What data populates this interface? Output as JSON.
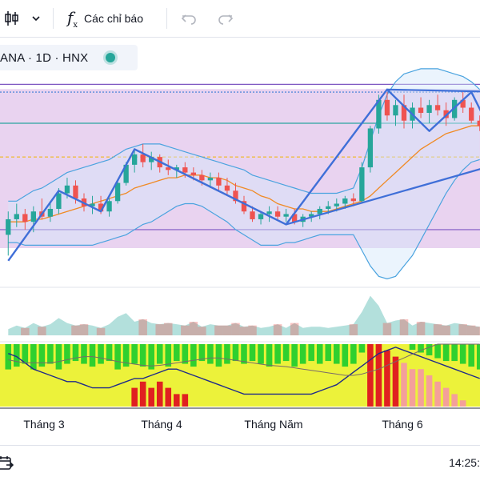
{
  "toolbar": {
    "candles_icon": "candlestick-icon",
    "dropdown_icon": "chevron-down-icon",
    "indicators_icon": "fx-icon",
    "indicators_label": "Các chỉ báo",
    "undo_icon": "undo-icon",
    "redo_icon": "redo-icon"
  },
  "legend": {
    "symbol_text": "ANA · 1D · HNX",
    "status_color": "#26a69a"
  },
  "bottom_bar": {
    "date_range_icon": "calendar-range-icon",
    "clock": "14:25:"
  },
  "colors": {
    "up": "#26a69a",
    "down": "#ef5350",
    "zigzag": "#3f6fd8",
    "bollinger": "#4aa3df",
    "ma": "#f08a24",
    "price_pane_bg": "#e9d3f0",
    "hist_green": "#2fd02f",
    "hist_yellow": "#ecf23a",
    "hist_red": "#e02020",
    "hist_pink": "#f4a09a"
  },
  "chart_data": [
    {
      "type": "candlestick",
      "x_tick_labels": [
        "Tháng 3",
        "Tháng 4",
        "Tháng Năm",
        "Tháng 6"
      ],
      "candles": [
        [
          20.4,
          21.3,
          19.6,
          21.0
        ],
        [
          21.0,
          21.6,
          20.7,
          21.2
        ],
        [
          21.2,
          21.4,
          20.6,
          20.9
        ],
        [
          20.9,
          21.5,
          20.5,
          21.3
        ],
        [
          21.3,
          21.8,
          21.0,
          21.1
        ],
        [
          21.1,
          21.7,
          20.9,
          21.4
        ],
        [
          21.4,
          22.2,
          21.2,
          22.0
        ],
        [
          22.0,
          22.6,
          21.8,
          22.3
        ],
        [
          22.3,
          22.5,
          21.6,
          21.8
        ],
        [
          21.8,
          22.0,
          21.3,
          21.5
        ],
        [
          21.5,
          21.9,
          21.2,
          21.6
        ],
        [
          21.6,
          21.9,
          21.2,
          21.3
        ],
        [
          21.3,
          21.8,
          21.1,
          21.7
        ],
        [
          21.7,
          22.5,
          21.6,
          22.4
        ],
        [
          22.4,
          23.2,
          22.3,
          23.1
        ],
        [
          23.1,
          23.7,
          22.8,
          23.5
        ],
        [
          23.5,
          23.9,
          23.0,
          23.2
        ],
        [
          23.2,
          23.6,
          22.9,
          23.4
        ],
        [
          23.4,
          23.5,
          22.8,
          23.0
        ],
        [
          23.0,
          23.3,
          22.7,
          22.9
        ],
        [
          22.9,
          23.1,
          22.6,
          23.0
        ],
        [
          23.0,
          23.2,
          22.6,
          22.8
        ],
        [
          22.8,
          23.0,
          22.5,
          22.7
        ],
        [
          22.7,
          22.9,
          22.3,
          22.5
        ],
        [
          22.5,
          22.8,
          22.2,
          22.6
        ],
        [
          22.6,
          22.8,
          22.1,
          22.3
        ],
        [
          22.3,
          22.6,
          21.9,
          22.1
        ],
        [
          22.1,
          22.4,
          21.6,
          21.7
        ],
        [
          21.7,
          21.9,
          21.2,
          21.3
        ],
        [
          21.3,
          21.5,
          20.9,
          21.0
        ],
        [
          21.0,
          21.3,
          20.8,
          21.2
        ],
        [
          21.2,
          21.5,
          20.9,
          21.3
        ],
        [
          21.3,
          21.5,
          21.0,
          21.1
        ],
        [
          21.1,
          21.4,
          20.9,
          21.2
        ],
        [
          21.2,
          21.4,
          20.8,
          20.9
        ],
        [
          20.9,
          21.2,
          20.7,
          21.1
        ],
        [
          21.1,
          21.3,
          20.9,
          21.2
        ],
        [
          21.2,
          21.5,
          21.0,
          21.4
        ],
        [
          21.4,
          21.7,
          21.2,
          21.5
        ],
        [
          21.5,
          21.8,
          21.3,
          21.6
        ],
        [
          21.6,
          21.9,
          21.4,
          21.8
        ],
        [
          21.8,
          22.0,
          21.5,
          21.7
        ],
        [
          21.7,
          23.2,
          21.6,
          23.0
        ],
        [
          23.0,
          24.6,
          22.8,
          24.5
        ],
        [
          24.5,
          25.8,
          24.3,
          25.6
        ],
        [
          25.6,
          25.9,
          24.8,
          25.0
        ],
        [
          25.0,
          25.6,
          24.6,
          25.4
        ],
        [
          25.4,
          25.8,
          24.5,
          24.8
        ],
        [
          24.8,
          25.5,
          24.5,
          25.3
        ],
        [
          25.3,
          25.7,
          24.9,
          25.1
        ],
        [
          25.1,
          25.6,
          24.7,
          25.4
        ],
        [
          25.4,
          25.8,
          25.0,
          25.2
        ],
        [
          25.2,
          25.5,
          24.6,
          24.9
        ],
        [
          24.9,
          25.7,
          24.8,
          25.6
        ],
        [
          25.6,
          25.9,
          25.1,
          25.3
        ],
        [
          25.3,
          25.5,
          24.7,
          24.8
        ],
        [
          24.8,
          25.0,
          24.4,
          24.6
        ]
      ],
      "moving_average": [
        20.9,
        20.9,
        20.9,
        21.0,
        21.0,
        21.1,
        21.2,
        21.3,
        21.4,
        21.5,
        21.6,
        21.7,
        21.8,
        21.9,
        22.0,
        22.2,
        22.3,
        22.4,
        22.5,
        22.6,
        22.6,
        22.7,
        22.7,
        22.7,
        22.6,
        22.6,
        22.5,
        22.3,
        22.2,
        22.1,
        21.9,
        21.8,
        21.6,
        21.5,
        21.4,
        21.4,
        21.3,
        21.3,
        21.3,
        21.4,
        21.5,
        21.6,
        21.7,
        21.9,
        22.2,
        22.5,
        22.8,
        23.1,
        23.4,
        23.7,
        23.9,
        24.1,
        24.3,
        24.4,
        24.5,
        24.6,
        24.6
      ],
      "bollinger_upper": [
        21.7,
        21.7,
        21.9,
        22.1,
        22.2,
        22.4,
        22.6,
        22.8,
        22.9,
        23.0,
        23.1,
        23.2,
        23.3,
        23.5,
        23.7,
        23.8,
        23.9,
        23.9,
        23.9,
        23.8,
        23.7,
        23.6,
        23.5,
        23.4,
        23.3,
        23.2,
        23.1,
        23.0,
        22.9,
        22.7,
        22.6,
        22.5,
        22.4,
        22.3,
        22.2,
        22.1,
        22.0,
        22.0,
        22.0,
        22.0,
        22.1,
        22.2,
        23.0,
        24.0,
        25.0,
        25.8,
        26.3,
        26.6,
        26.7,
        26.8,
        26.8,
        26.8,
        26.7,
        26.6,
        26.5,
        26.3,
        26.0
      ],
      "bollinger_lower": [
        20.1,
        20.1,
        20.0,
        20.0,
        20.0,
        20.0,
        20.0,
        20.0,
        20.0,
        20.0,
        20.0,
        20.1,
        20.2,
        20.3,
        20.4,
        20.6,
        20.8,
        20.9,
        21.1,
        21.3,
        21.5,
        21.6,
        21.6,
        21.5,
        21.3,
        21.1,
        20.9,
        20.6,
        20.4,
        20.2,
        20.0,
        20.0,
        20.0,
        20.1,
        20.1,
        20.2,
        20.3,
        20.4,
        20.4,
        20.4,
        20.4,
        20.4,
        19.8,
        19.2,
        18.8,
        18.7,
        18.8,
        19.2,
        19.6,
        20.2,
        20.8,
        21.4,
        22.0,
        22.5,
        22.9,
        23.2,
        23.3
      ],
      "zigzag": [
        [
          0,
          19.4
        ],
        [
          6,
          22.1
        ],
        [
          11,
          21.3
        ],
        [
          15,
          23.7
        ],
        [
          33,
          20.8
        ],
        [
          45,
          26.0
        ],
        [
          50,
          24.4
        ],
        [
          55,
          25.9
        ],
        [
          57,
          24.6
        ]
      ],
      "trendlines": [
        [
          [
            45,
            26.0
          ],
          [
            60,
            25.9
          ]
        ],
        [
          [
            33,
            20.8
          ],
          [
            60,
            23.3
          ]
        ]
      ],
      "horizontal_levels": [
        26.2,
        25.9,
        24.7,
        23.4,
        20.6
      ]
    },
    {
      "type": "area",
      "values": [
        0.5,
        0.8,
        0.6,
        1.0,
        0.7,
        0.9,
        1.4,
        1.0,
        0.8,
        0.9,
        0.8,
        0.6,
        0.9,
        1.5,
        1.8,
        1.1,
        1.3,
        1.0,
        0.9,
        1.0,
        0.9,
        0.8,
        1.1,
        0.7,
        0.9,
        0.8,
        0.8,
        1.0,
        0.7,
        0.8,
        0.6,
        0.7,
        0.9,
        0.6,
        1.0,
        0.6,
        0.7,
        0.7,
        0.6,
        0.7,
        0.8,
        0.9,
        1.9,
        3.2,
        2.4,
        1.0,
        1.2,
        1.3,
        0.8,
        1.1,
        1.0,
        0.9,
        0.8,
        1.0,
        0.9,
        0.8,
        0.7
      ],
      "up_down": [
        1,
        1,
        0,
        1,
        0,
        1,
        1,
        1,
        0,
        0,
        1,
        0,
        1,
        1,
        1,
        1,
        0,
        1,
        0,
        0,
        1,
        0,
        0,
        0,
        1,
        0,
        0,
        0,
        0,
        0,
        1,
        1,
        0,
        1,
        0,
        1,
        1,
        1,
        1,
        1,
        1,
        0,
        1,
        1,
        1,
        0,
        1,
        0,
        1,
        0,
        1,
        0,
        0,
        1,
        0,
        0,
        0
      ]
    },
    {
      "type": "bar",
      "green_bars": [
        0.9,
        0.8,
        0.7,
        0.9,
        0.8,
        0.7,
        0.9,
        0.7,
        0.6,
        0.7,
        0.8,
        0.7,
        0.6,
        0.9,
        0.8,
        0.7,
        0.8,
        0.9,
        0.7,
        0.8,
        0.6,
        0.7,
        0.8,
        0.6,
        0.7,
        0.8,
        0.7,
        0.6,
        0.7,
        0.6,
        0.7,
        0.8,
        0.7,
        0.6,
        0.8,
        0.7,
        0.6,
        0.7,
        0.6,
        0.7,
        0.8,
        0.7,
        0.3,
        0.0,
        0.0,
        0.0,
        0.0,
        0.0,
        0.2,
        0.3,
        0.4,
        0.5,
        0.6,
        0.6,
        0.7,
        0.8,
        0.9
      ],
      "red_bars": [
        0,
        0,
        0,
        0,
        0,
        0,
        0,
        0,
        0,
        0,
        0,
        0,
        0,
        0,
        0,
        0,
        0,
        0,
        0,
        0,
        0,
        0,
        0,
        0,
        0,
        0,
        0,
        0,
        0,
        0,
        0,
        0,
        0,
        0,
        0,
        0,
        0,
        0,
        0,
        0,
        0,
        0,
        0,
        1.0,
        1.0,
        0.9,
        0.8,
        0.7,
        0.6,
        0.6,
        0.5,
        0.4,
        0.3,
        0.2,
        0.1,
        0.0,
        0.0
      ],
      "mid_red_bars": [
        0,
        0,
        0,
        0,
        0,
        0,
        0,
        0,
        0,
        0,
        0,
        0,
        0,
        0,
        0,
        0.3,
        0.4,
        0.3,
        0.4,
        0.3,
        0.2,
        0.2,
        0,
        0,
        0,
        0,
        0,
        0,
        0,
        0,
        0,
        0,
        0,
        0,
        0,
        0,
        0,
        0,
        0,
        0,
        0,
        0,
        0,
        0,
        0,
        0,
        0,
        0,
        0,
        0,
        0,
        0,
        0,
        0,
        0,
        0,
        0
      ],
      "line1": [
        0.85,
        0.8,
        0.7,
        0.6,
        0.55,
        0.5,
        0.45,
        0.4,
        0.4,
        0.35,
        0.3,
        0.3,
        0.3,
        0.35,
        0.4,
        0.45,
        0.45,
        0.5,
        0.55,
        0.6,
        0.6,
        0.55,
        0.5,
        0.45,
        0.4,
        0.35,
        0.3,
        0.25,
        0.2,
        0.2,
        0.2,
        0.2,
        0.2,
        0.2,
        0.2,
        0.2,
        0.2,
        0.25,
        0.3,
        0.35,
        0.45,
        0.55,
        0.65,
        0.75,
        0.85,
        0.9,
        0.95,
        0.9,
        0.85,
        0.8,
        0.75,
        0.7,
        0.65,
        0.6,
        0.55,
        0.5,
        0.45
      ],
      "line2": [
        0.75,
        0.72,
        0.7,
        0.7,
        0.7,
        0.7,
        0.72,
        0.75,
        0.78,
        0.8,
        0.8,
        0.78,
        0.75,
        0.72,
        0.7,
        0.68,
        0.66,
        0.65,
        0.66,
        0.68,
        0.7,
        0.72,
        0.74,
        0.76,
        0.78,
        0.78,
        0.76,
        0.74,
        0.72,
        0.7,
        0.68,
        0.66,
        0.65,
        0.64,
        0.62,
        0.6,
        0.58,
        0.56,
        0.54,
        0.52,
        0.5,
        0.5,
        0.52,
        0.56,
        0.6,
        0.66,
        0.72,
        0.78,
        0.84,
        0.9,
        0.95,
        1.0,
        1.0,
        1.0,
        1.0,
        1.0,
        1.0
      ]
    }
  ]
}
